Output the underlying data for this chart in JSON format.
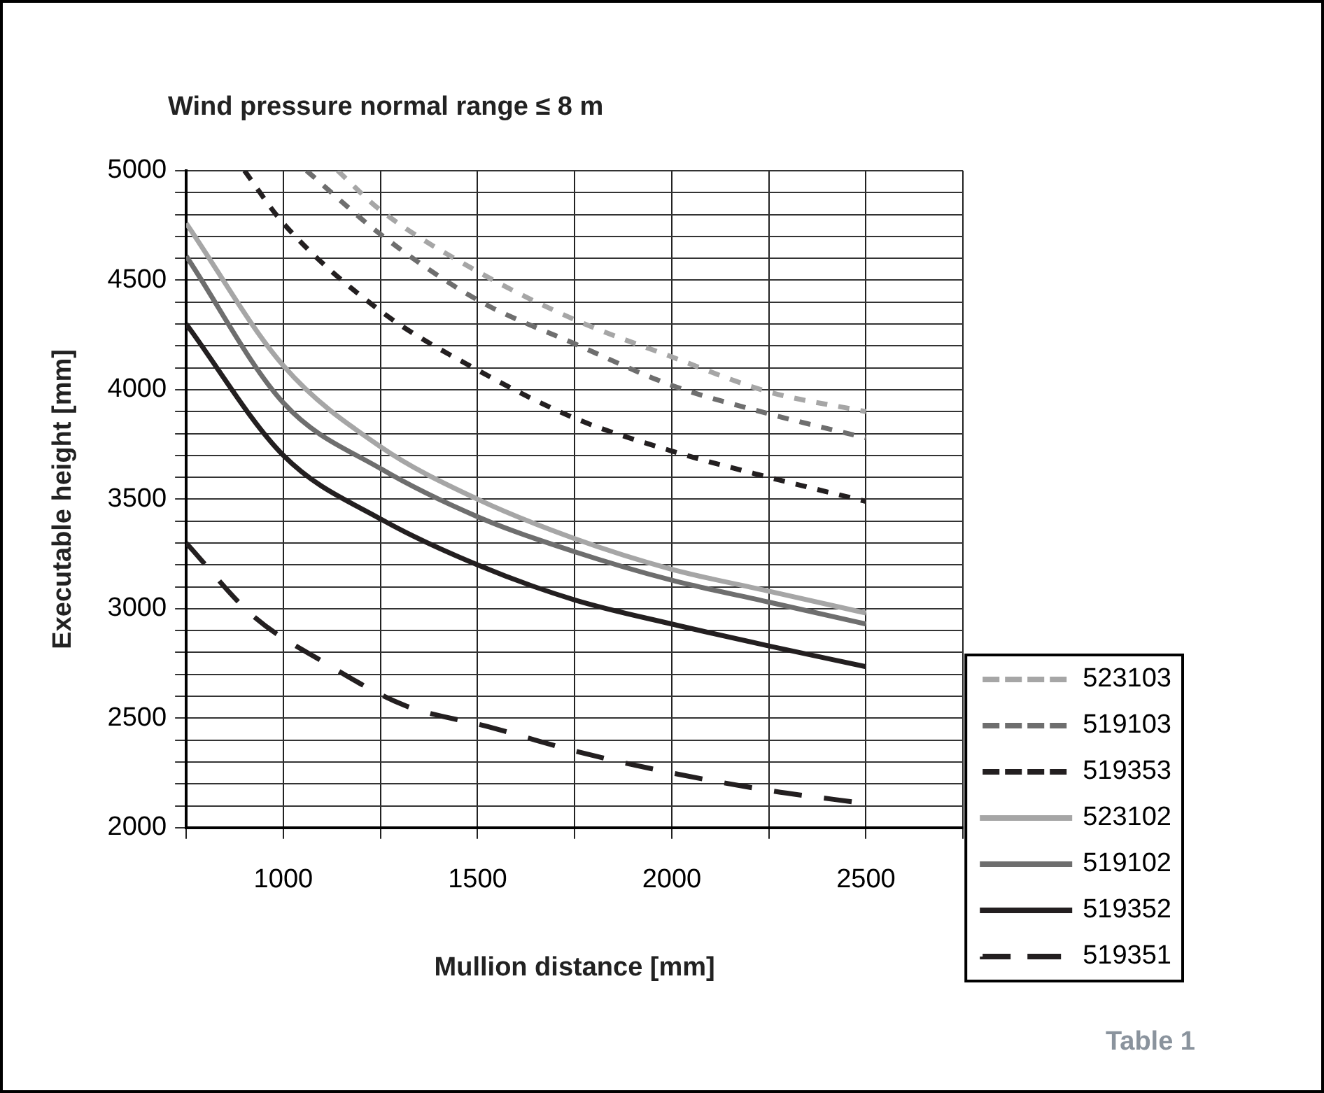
{
  "chart_data": {
    "type": "line",
    "title": "Wind pressure normal range ≤ 8 m",
    "xlabel": "Mullion distance [mm]",
    "ylabel": "Executable height [mm]",
    "xlim": [
      750,
      2750
    ],
    "xticks": [
      {
        "value": 750,
        "label": null
      },
      1000,
      {
        "value": 1250,
        "label": null
      },
      1500,
      {
        "value": 1750,
        "label": null
      },
      2000,
      {
        "value": 2250,
        "label": null
      },
      2500,
      {
        "value": 2750,
        "label": null
      }
    ],
    "ylim": [
      2000,
      5000
    ],
    "yticks": [
      2000,
      {
        "value": 2100,
        "label": null
      },
      {
        "value": 2200,
        "label": null
      },
      {
        "value": 2300,
        "label": null
      },
      {
        "value": 2400,
        "label": null
      },
      2500,
      {
        "value": 2600,
        "label": null
      },
      {
        "value": 2700,
        "label": null
      },
      {
        "value": 2800,
        "label": null
      },
      {
        "value": 2900,
        "label": null
      },
      3000,
      {
        "value": 3100,
        "label": null
      },
      {
        "value": 3200,
        "label": null
      },
      {
        "value": 3300,
        "label": null
      },
      {
        "value": 3400,
        "label": null
      },
      3500,
      {
        "value": 3600,
        "label": null
      },
      {
        "value": 3700,
        "label": null
      },
      {
        "value": 3800,
        "label": null
      },
      {
        "value": 3900,
        "label": null
      },
      4000,
      {
        "value": 4100,
        "label": null
      },
      {
        "value": 4200,
        "label": null
      },
      {
        "value": 4300,
        "label": null
      },
      {
        "value": 4400,
        "label": null
      },
      4500,
      {
        "value": 4600,
        "label": null
      },
      {
        "value": 4700,
        "label": null
      },
      {
        "value": 4800,
        "label": null
      },
      {
        "value": 4900,
        "label": null
      },
      5000
    ],
    "grid": true,
    "legend": "right",
    "marker": "none",
    "series": [
      {
        "name": "523103",
        "color": "#a6a6a6",
        "line_style": "dotted",
        "x": [
          1140,
          1250,
          1500,
          1750,
          2000,
          2250,
          2500
        ],
        "values": [
          5000,
          4820,
          4540,
          4320,
          4150,
          3990,
          3900
        ]
      },
      {
        "name": "519103",
        "color": "#6e6e6e",
        "line_style": "dotted",
        "x": [
          1060,
          1250,
          1500,
          1750,
          2000,
          2250,
          2500
        ],
        "values": [
          5000,
          4710,
          4410,
          4210,
          4020,
          3890,
          3780
        ]
      },
      {
        "name": "519353",
        "color": "#231f20",
        "line_style": "dotted",
        "x": [
          900,
          1000,
          1250,
          1500,
          1750,
          2000,
          2250,
          2500
        ],
        "values": [
          5000,
          4760,
          4360,
          4090,
          3870,
          3720,
          3600,
          3490
        ]
      },
      {
        "name": "523102",
        "color": "#a6a6a6",
        "line_style": "solid",
        "x": [
          750,
          1000,
          1250,
          1500,
          1750,
          2000,
          2250,
          2500
        ],
        "values": [
          4760,
          4110,
          3740,
          3500,
          3320,
          3180,
          3080,
          2980
        ]
      },
      {
        "name": "519102",
        "color": "#6e6e6e",
        "line_style": "solid",
        "x": [
          750,
          1000,
          1250,
          1500,
          1750,
          2000,
          2250,
          2500
        ],
        "values": [
          4610,
          3940,
          3640,
          3420,
          3260,
          3130,
          3030,
          2930
        ]
      },
      {
        "name": "519352",
        "color": "#231f20",
        "line_style": "solid",
        "x": [
          750,
          1000,
          1250,
          1500,
          1750,
          2000,
          2250,
          2500
        ],
        "values": [
          4300,
          3700,
          3410,
          3200,
          3040,
          2930,
          2830,
          2735
        ]
      },
      {
        "name": "519351",
        "color": "#231f20",
        "line_style": "dashed",
        "x": [
          750,
          920,
          1100,
          1310,
          1530,
          1750,
          2000,
          2250,
          2500
        ],
        "values": [
          3300,
          2970,
          2760,
          2560,
          2460,
          2350,
          2250,
          2170,
          2110
        ]
      }
    ],
    "annotations": [
      "Table 1"
    ]
  }
}
